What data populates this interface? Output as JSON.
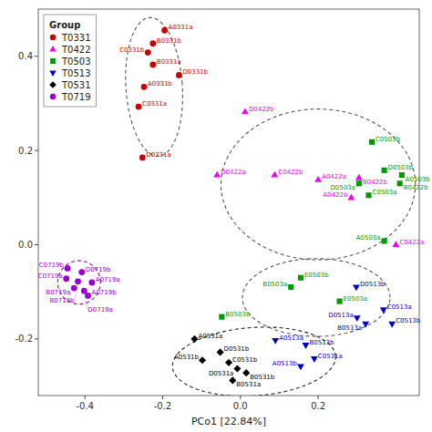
{
  "chart_data": {
    "type": "scatter",
    "x_label": "PCo1 [22.84%]",
    "xlim": [
      -0.52,
      0.46
    ],
    "ylim": [
      -0.32,
      0.5
    ],
    "xticks": [
      -0.4,
      -0.2,
      {
        "value": 0.0,
        "label": "0.0"
      },
      0.2
    ],
    "yticks": [
      -0.2,
      {
        "value": 0.0,
        "label": "0.0"
      },
      0.2,
      0.4
    ],
    "grid": false,
    "legend": "upper left",
    "legend_title": "Group",
    "series": [
      {
        "name": "T0331",
        "color": "#cc0000",
        "marker": "circle",
        "x": [
          -0.195,
          -0.225,
          -0.238,
          -0.225,
          -0.158,
          -0.248,
          -0.262,
          -0.252
        ],
        "values": [
          0.455,
          0.427,
          0.408,
          0.382,
          0.36,
          0.335,
          0.293,
          0.185
        ],
        "labels": [
          "A0331a",
          "B0331b",
          "C0331b",
          "B0331a",
          "D0331b",
          "A0331b",
          "C0331a",
          "D0331a"
        ]
      },
      {
        "name": "T0422",
        "color": "#ee00ee",
        "marker": "triangle-up",
        "x": [
          0.012,
          -0.06,
          0.088,
          0.2,
          0.305,
          0.285,
          0.4
        ],
        "values": [
          0.282,
          0.148,
          0.148,
          0.138,
          0.142,
          0.1,
          0.0
        ],
        "labels": [
          "D0422b",
          "D0422a",
          "C0422b",
          "A0422a",
          "B0422b",
          "A0422b",
          "C0422a"
        ]
      },
      {
        "name": "T0503",
        "color": "#009900",
        "marker": "square",
        "x": [
          0.338,
          0.37,
          0.415,
          0.305,
          0.41,
          0.33,
          0.37,
          0.155,
          0.13,
          0.255,
          -0.048
        ],
        "values": [
          0.218,
          0.158,
          0.148,
          0.13,
          0.13,
          0.105,
          0.008,
          -0.07,
          -0.09,
          -0.12,
          -0.153
        ],
        "labels": [
          "C0503b",
          "D0503b",
          "A0503b",
          "D0503a",
          "B0422b",
          "C0503a",
          "A0503a",
          "E0503b",
          "B0503a",
          "E0503a",
          "B0503b"
        ]
      },
      {
        "name": "T0513",
        "color": "#0000cc",
        "marker": "triangle-down",
        "x": [
          0.298,
          0.368,
          0.3,
          0.322,
          0.39,
          0.09,
          0.168,
          0.19,
          0.155
        ],
        "values": [
          -0.09,
          -0.138,
          -0.155,
          -0.168,
          -0.168,
          -0.203,
          -0.213,
          -0.242,
          -0.258
        ],
        "labels": [
          "D0513b",
          "C0513a",
          "D0513a",
          "B0513a",
          "C0513b",
          "A0513a",
          "B0513b",
          "C0531a",
          "A0513b"
        ]
      },
      {
        "name": "T0531",
        "color": "#000000",
        "marker": "diamond",
        "x": [
          -0.118,
          -0.052,
          -0.098,
          -0.03,
          -0.008,
          0.015,
          -0.02
        ],
        "values": [
          -0.2,
          -0.228,
          -0.245,
          -0.25,
          -0.263,
          -0.272,
          -0.288
        ],
        "labels": [
          "A0531a",
          "D0531b",
          "A0531b",
          "C0531b",
          "D0531a",
          "B0531b",
          "B0531a"
        ]
      },
      {
        "name": "T0719",
        "color": "#9900cc",
        "marker": "circle",
        "x": [
          -0.445,
          -0.408,
          -0.448,
          -0.418,
          -0.382,
          -0.428,
          -0.402,
          -0.392
        ],
        "values": [
          -0.05,
          -0.058,
          -0.072,
          -0.078,
          -0.08,
          -0.092,
          -0.098,
          -0.108
        ],
        "labels": [
          "C0719b",
          "D0719b",
          "C0719a",
          "B0719b",
          "A0719a",
          "B0719a",
          "D0719a",
          "A0719b"
        ]
      }
    ],
    "ellipses": [
      {
        "cx": -0.222,
        "cy": 0.335,
        "width": 0.145,
        "height": 0.295,
        "angle": 5,
        "color": "#555555"
      },
      {
        "cx": 0.2,
        "cy": 0.128,
        "width": 0.5,
        "height": 0.32,
        "angle": 0,
        "color": "#555555"
      },
      {
        "cx": 0.195,
        "cy": -0.112,
        "width": 0.38,
        "height": 0.165,
        "angle": 0,
        "color": "#555555"
      },
      {
        "cx": 0.035,
        "cy": -0.248,
        "width": 0.42,
        "height": 0.145,
        "angle": 3,
        "color": "#222222"
      },
      {
        "cx": -0.415,
        "cy": -0.08,
        "width": 0.11,
        "height": 0.092,
        "angle": 0,
        "color": "#9900cc"
      }
    ]
  }
}
